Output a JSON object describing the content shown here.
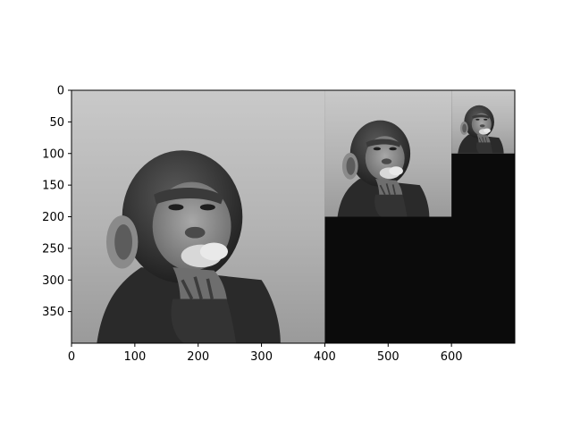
{
  "chart_data": {
    "type": "image",
    "title": "",
    "xlabel": "",
    "ylabel": "",
    "x_range": [
      0,
      700
    ],
    "y_range": [
      400,
      0
    ],
    "y_inverted": true,
    "x_ticks": [
      0,
      100,
      200,
      300,
      400,
      500,
      600
    ],
    "y_ticks": [
      0,
      50,
      100,
      150,
      200,
      250,
      300,
      350
    ],
    "grid": false,
    "colormap": "gray",
    "background_fill": "#0b0b0b",
    "panels": [
      {
        "name": "chimp-full",
        "x": [
          0,
          400
        ],
        "y": [
          0,
          400
        ],
        "scale": 1.0
      },
      {
        "name": "chimp-half",
        "x": [
          400,
          600
        ],
        "y": [
          0,
          200
        ],
        "scale": 0.5
      },
      {
        "name": "chimp-quarter",
        "x": [
          600,
          700
        ],
        "y": [
          0,
          100
        ],
        "scale": 0.25
      }
    ]
  }
}
